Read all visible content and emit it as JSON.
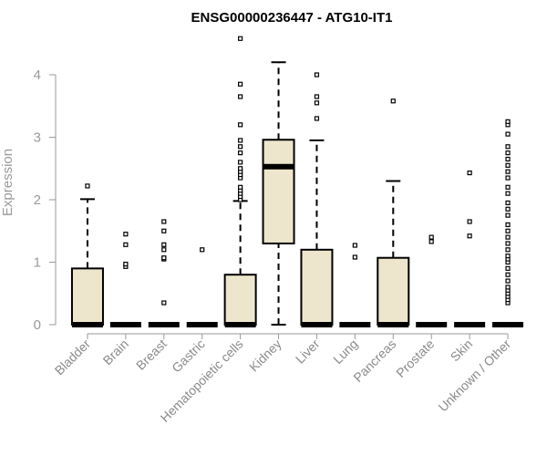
{
  "title": "ENSG00000236447 - ATG10-IT1",
  "ylabel": "Expression",
  "chart_data": {
    "type": "box",
    "title": "ENSG00000236447 - ATG10-IT1",
    "xlabel": "",
    "ylabel": "Expression",
    "ylim": [
      0,
      4.6
    ],
    "yticks": [
      0,
      1,
      2,
      3,
      4
    ],
    "grid": false,
    "box_fill": "#ede6cd",
    "box_stroke": "#000000",
    "categories": [
      "Bladder",
      "Brain",
      "Breast",
      "Gastric",
      "Hematopoietic cells",
      "Kidney",
      "Liver",
      "Lung",
      "Pancreas",
      "Prostate",
      "Skin",
      "Unknown / Other"
    ],
    "boxes": [
      {
        "category": "Bladder",
        "min": 0,
        "q1": 0,
        "median": 0,
        "q3": 0.9,
        "max": 2.01,
        "outliers": [
          2.22
        ]
      },
      {
        "category": "Brain",
        "min": 0,
        "q1": 0,
        "median": 0,
        "q3": 0,
        "max": 0,
        "outliers": [
          0.93,
          0.97,
          1.28,
          1.45
        ]
      },
      {
        "category": "Breast",
        "min": 0,
        "q1": 0,
        "median": 0,
        "q3": 0,
        "max": 0,
        "outliers": [
          0.35,
          1.05,
          1.07,
          1.2,
          1.28,
          1.5,
          1.65
        ]
      },
      {
        "category": "Gastric",
        "min": 0,
        "q1": 0,
        "median": 0,
        "q3": 0,
        "max": 0,
        "outliers": [
          1.2
        ]
      },
      {
        "category": "Hematopoietic cells",
        "min": 0,
        "q1": 0,
        "median": 0,
        "q3": 0.8,
        "max": 1.98,
        "outliers": [
          2.0,
          2.05,
          2.1,
          2.15,
          2.2,
          2.35,
          2.4,
          2.45,
          2.5,
          2.6,
          2.75,
          2.85,
          2.95,
          3.2,
          3.65,
          3.85,
          4.58
        ]
      },
      {
        "category": "Kidney",
        "min": 0,
        "q1": 1.3,
        "median": 2.53,
        "q3": 2.96,
        "max": 4.2,
        "outliers": []
      },
      {
        "category": "Liver",
        "min": 0,
        "q1": 0,
        "median": 0,
        "q3": 1.2,
        "max": 2.95,
        "outliers": [
          3.3,
          3.55,
          3.65,
          4.0
        ]
      },
      {
        "category": "Lung",
        "min": 0,
        "q1": 0,
        "median": 0,
        "q3": 0,
        "max": 0,
        "outliers": [
          1.08,
          1.27
        ]
      },
      {
        "category": "Pancreas",
        "min": 0,
        "q1": 0,
        "median": 0,
        "q3": 1.07,
        "max": 2.3,
        "outliers": [
          3.58
        ]
      },
      {
        "category": "Prostate",
        "min": 0,
        "q1": 0,
        "median": 0,
        "q3": 0,
        "max": 0,
        "outliers": [
          1.33,
          1.4
        ]
      },
      {
        "category": "Skin",
        "min": 0,
        "q1": 0,
        "median": 0,
        "q3": 0,
        "max": 0,
        "outliers": [
          1.42,
          1.65,
          2.43
        ]
      },
      {
        "category": "Unknown / Other",
        "min": 0,
        "q1": 0,
        "median": 0,
        "q3": 0,
        "max": 0,
        "outliers": [
          0.35,
          0.4,
          0.45,
          0.5,
          0.55,
          0.6,
          0.7,
          0.8,
          0.9,
          1.0,
          1.05,
          1.1,
          1.2,
          1.3,
          1.4,
          1.5,
          1.6,
          1.75,
          1.85,
          1.95,
          2.1,
          2.2,
          2.35,
          2.45,
          2.55,
          2.65,
          2.75,
          2.85,
          3.05,
          3.2,
          3.25
        ]
      }
    ]
  }
}
